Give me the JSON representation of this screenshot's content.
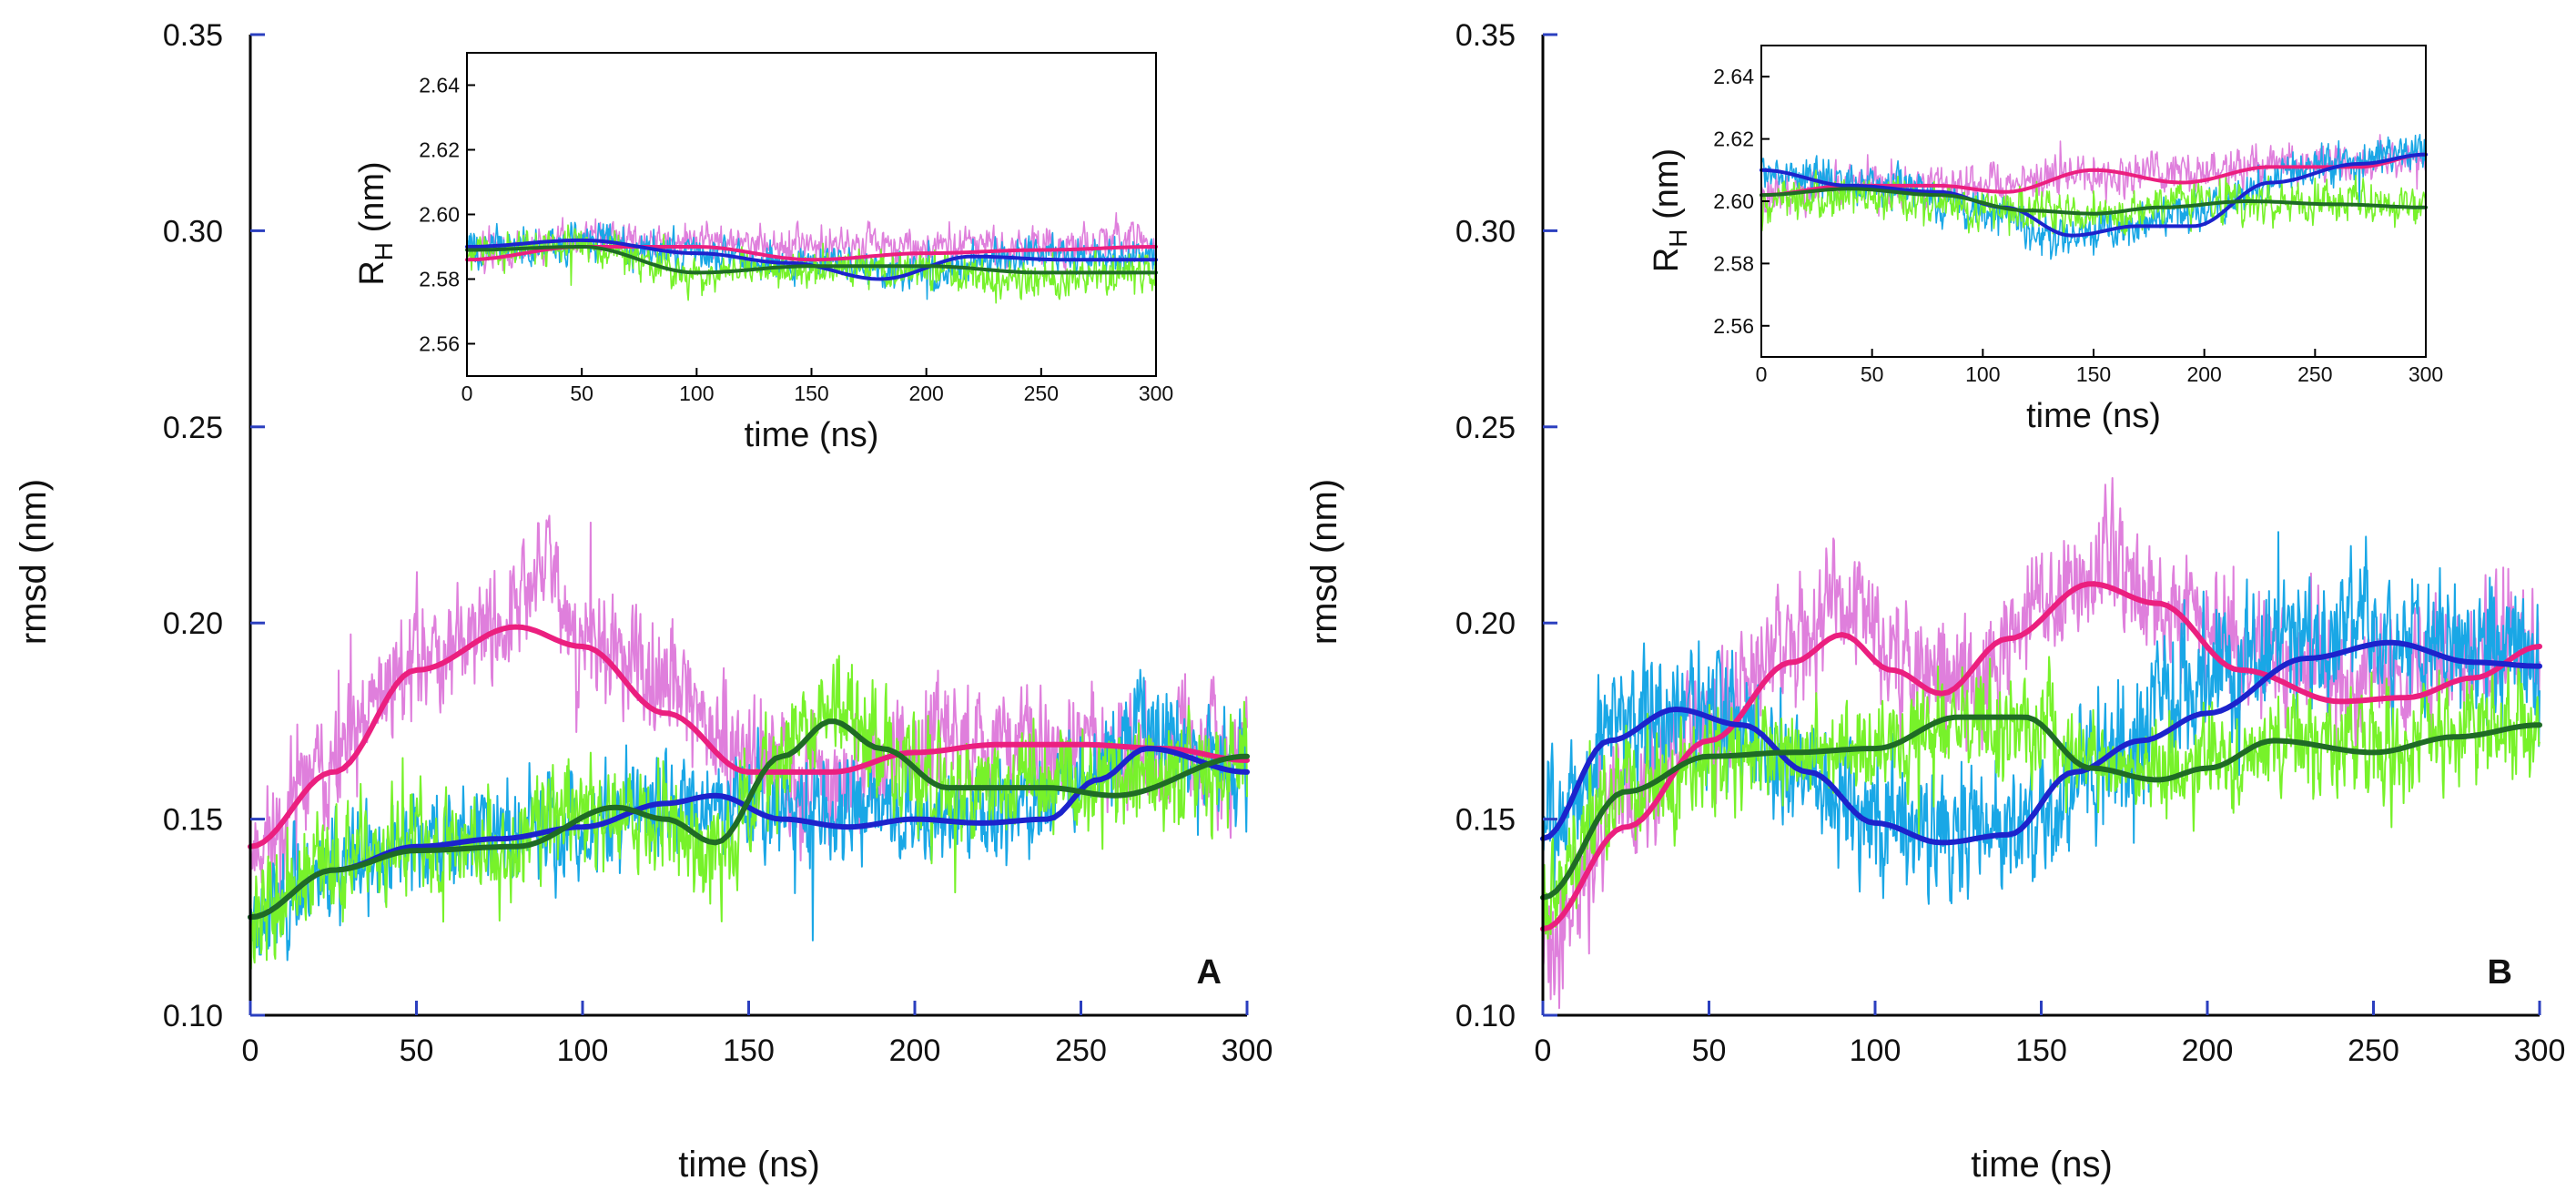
{
  "colors": {
    "noisy_pink": "#df7fdc",
    "noisy_blue": "#19a7e6",
    "noisy_green": "#77f22a",
    "smooth_pink": "#eb1f7f",
    "smooth_blue": "#1c23cc",
    "smooth_green": "#1f6b25"
  },
  "chart_data": [
    {
      "type": "line",
      "panel_label": "A",
      "xlabel": "time (ns)",
      "ylabel": "rmsd (nm)",
      "xlim": [
        0,
        300
      ],
      "ylim": [
        0.1,
        0.35
      ],
      "xticks": [
        0,
        50,
        100,
        150,
        200,
        250,
        300
      ],
      "yticks": [
        0.1,
        0.15,
        0.2,
        0.25,
        0.3,
        0.35
      ],
      "xtick_labels": [
        "0",
        "50",
        "100",
        "150",
        "200",
        "250",
        "300"
      ],
      "ytick_labels": [
        "0.10",
        "0.15",
        "0.20",
        "0.25",
        "0.30",
        "0.35"
      ],
      "series": [
        {
          "name": "pink",
          "style": "noisy",
          "color": "#df7fdc",
          "noise": 0.018,
          "seed": 11,
          "x": [
            0,
            25,
            50,
            75,
            90,
            100,
            125,
            150,
            175,
            200,
            225,
            250,
            275,
            300
          ],
          "values": [
            0.143,
            0.165,
            0.192,
            0.2,
            0.215,
            0.195,
            0.185,
            0.165,
            0.16,
            0.168,
            0.17,
            0.168,
            0.168,
            0.166
          ]
        },
        {
          "name": "blue",
          "style": "noisy",
          "color": "#19a7e6",
          "noise": 0.016,
          "seed": 23,
          "x": [
            0,
            25,
            50,
            75,
            100,
            125,
            150,
            175,
            200,
            225,
            250,
            270,
            300
          ],
          "values": [
            0.125,
            0.138,
            0.143,
            0.147,
            0.148,
            0.155,
            0.155,
            0.15,
            0.152,
            0.15,
            0.16,
            0.175,
            0.162
          ]
        },
        {
          "name": "green",
          "style": "noisy",
          "color": "#77f22a",
          "noise": 0.017,
          "seed": 37,
          "x": [
            0,
            25,
            50,
            75,
            100,
            125,
            140,
            160,
            175,
            200,
            225,
            250,
            275,
            300
          ],
          "values": [
            0.125,
            0.138,
            0.143,
            0.143,
            0.152,
            0.15,
            0.14,
            0.168,
            0.178,
            0.16,
            0.158,
            0.16,
            0.16,
            0.165
          ]
        },
        {
          "name": "pink_smooth",
          "style": "smooth",
          "color": "#eb1f7f",
          "x": [
            0,
            25,
            50,
            80,
            100,
            125,
            150,
            175,
            200,
            225,
            250,
            275,
            300
          ],
          "values": [
            0.143,
            0.162,
            0.188,
            0.199,
            0.194,
            0.177,
            0.162,
            0.162,
            0.167,
            0.169,
            0.169,
            0.168,
            0.165
          ]
        },
        {
          "name": "blue_smooth",
          "style": "smooth",
          "color": "#1c23cc",
          "x": [
            0,
            25,
            50,
            75,
            100,
            125,
            140,
            160,
            180,
            200,
            220,
            240,
            255,
            270,
            300
          ],
          "values": [
            0.125,
            0.137,
            0.143,
            0.145,
            0.148,
            0.154,
            0.156,
            0.15,
            0.148,
            0.15,
            0.149,
            0.15,
            0.16,
            0.168,
            0.162
          ]
        },
        {
          "name": "green_smooth",
          "style": "smooth",
          "color": "#1f6b25",
          "x": [
            0,
            25,
            50,
            80,
            110,
            125,
            140,
            160,
            175,
            190,
            210,
            240,
            260,
            300
          ],
          "values": [
            0.125,
            0.137,
            0.142,
            0.143,
            0.153,
            0.15,
            0.144,
            0.166,
            0.175,
            0.168,
            0.158,
            0.158,
            0.156,
            0.166
          ]
        }
      ],
      "inset": {
        "xlabel": "time (ns)",
        "ylabel": "RH (nm)",
        "ylabel_main": "R",
        "ylabel_sub": "H",
        "ylabel_unit": "(nm)",
        "xlim": [
          0,
          300
        ],
        "ylim": [
          2.55,
          2.65
        ],
        "xticks": [
          0,
          50,
          100,
          150,
          200,
          250,
          300
        ],
        "yticks": [
          2.56,
          2.58,
          2.6,
          2.62,
          2.64
        ],
        "xtick_labels": [
          "0",
          "50",
          "100",
          "150",
          "200",
          "250",
          "300"
        ],
        "ytick_labels": [
          "2.56",
          "2.58",
          "2.60",
          "2.62",
          "2.64"
        ],
        "series": [
          {
            "name": "pink",
            "style": "noisy",
            "color": "#df7fdc",
            "noise": 0.007,
            "seed": 51,
            "x": [
              0,
              50,
              100,
              150,
              200,
              250,
              300
            ],
            "values": [
              2.588,
              2.592,
              2.592,
              2.59,
              2.59,
              2.59,
              2.592
            ]
          },
          {
            "name": "blue",
            "style": "noisy",
            "color": "#19a7e6",
            "noise": 0.007,
            "seed": 63,
            "x": [
              0,
              50,
              100,
              150,
              200,
              250,
              300
            ],
            "values": [
              2.59,
              2.592,
              2.588,
              2.585,
              2.582,
              2.588,
              2.587
            ]
          },
          {
            "name": "green",
            "style": "noisy",
            "color": "#77f22a",
            "noise": 0.007,
            "seed": 77,
            "x": [
              0,
              50,
              100,
              150,
              200,
              250,
              300
            ],
            "values": [
              2.588,
              2.59,
              2.582,
              2.583,
              2.582,
              2.58,
              2.582
            ]
          },
          {
            "name": "pink_smooth",
            "style": "smooth",
            "color": "#eb1f7f",
            "x": [
              0,
              50,
              100,
              150,
              200,
              250,
              300
            ],
            "values": [
              2.586,
              2.59,
              2.59,
              2.586,
              2.588,
              2.589,
              2.59
            ]
          },
          {
            "name": "blue_smooth",
            "style": "smooth",
            "color": "#1c23cc",
            "x": [
              0,
              50,
              100,
              140,
              180,
              220,
              260,
              300
            ],
            "values": [
              2.59,
              2.592,
              2.588,
              2.585,
              2.58,
              2.587,
              2.586,
              2.586
            ]
          },
          {
            "name": "green_smooth",
            "style": "smooth",
            "color": "#1f6b25",
            "x": [
              0,
              50,
              100,
              150,
              200,
              250,
              300
            ],
            "values": [
              2.589,
              2.59,
              2.582,
              2.584,
              2.584,
              2.582,
              2.582
            ]
          }
        ]
      }
    },
    {
      "type": "line",
      "panel_label": "B",
      "xlabel": "time (ns)",
      "ylabel": "rmsd (nm)",
      "xlim": [
        0,
        300
      ],
      "ylim": [
        0.1,
        0.35
      ],
      "xticks": [
        0,
        50,
        100,
        150,
        200,
        250,
        300
      ],
      "yticks": [
        0.1,
        0.15,
        0.2,
        0.25,
        0.3,
        0.35
      ],
      "xtick_labels": [
        "0",
        "50",
        "100",
        "150",
        "200",
        "250",
        "300"
      ],
      "ytick_labels": [
        "0.10",
        "0.15",
        "0.20",
        "0.25",
        "0.30",
        "0.35"
      ],
      "series": [
        {
          "name": "pink",
          "style": "noisy",
          "color": "#df7fdc",
          "noise": 0.02,
          "seed": 91,
          "x": [
            0,
            25,
            50,
            75,
            90,
            110,
            130,
            150,
            170,
            190,
            220,
            250,
            275,
            300
          ],
          "values": [
            0.12,
            0.155,
            0.175,
            0.195,
            0.205,
            0.19,
            0.182,
            0.205,
            0.215,
            0.205,
            0.19,
            0.185,
            0.19,
            0.195
          ]
        },
        {
          "name": "blue",
          "style": "noisy",
          "color": "#19a7e6",
          "noise": 0.02,
          "seed": 103,
          "x": [
            0,
            25,
            50,
            75,
            100,
            125,
            150,
            175,
            200,
            225,
            250,
            275,
            300
          ],
          "values": [
            0.145,
            0.175,
            0.178,
            0.165,
            0.15,
            0.145,
            0.15,
            0.17,
            0.185,
            0.195,
            0.198,
            0.195,
            0.19
          ]
        },
        {
          "name": "green",
          "style": "noisy",
          "color": "#77f22a",
          "noise": 0.016,
          "seed": 117,
          "x": [
            0,
            25,
            50,
            75,
            100,
            125,
            150,
            175,
            200,
            225,
            250,
            275,
            300
          ],
          "values": [
            0.13,
            0.158,
            0.165,
            0.167,
            0.168,
            0.175,
            0.172,
            0.162,
            0.165,
            0.17,
            0.168,
            0.172,
            0.175
          ]
        },
        {
          "name": "pink_smooth",
          "style": "smooth",
          "color": "#eb1f7f",
          "x": [
            0,
            25,
            50,
            75,
            90,
            105,
            120,
            140,
            165,
            185,
            210,
            240,
            260,
            280,
            300
          ],
          "values": [
            0.122,
            0.148,
            0.17,
            0.19,
            0.197,
            0.188,
            0.182,
            0.196,
            0.21,
            0.205,
            0.188,
            0.18,
            0.181,
            0.186,
            0.194
          ]
        },
        {
          "name": "blue_smooth",
          "style": "smooth",
          "color": "#1c23cc",
          "x": [
            0,
            20,
            40,
            60,
            80,
            100,
            120,
            140,
            160,
            180,
            200,
            230,
            255,
            280,
            300
          ],
          "values": [
            0.145,
            0.17,
            0.178,
            0.174,
            0.162,
            0.149,
            0.144,
            0.146,
            0.162,
            0.17,
            0.177,
            0.191,
            0.195,
            0.19,
            0.189
          ]
        },
        {
          "name": "green_smooth",
          "style": "smooth",
          "color": "#1f6b25",
          "x": [
            0,
            25,
            50,
            75,
            100,
            125,
            145,
            165,
            185,
            200,
            220,
            250,
            275,
            300
          ],
          "values": [
            0.13,
            0.157,
            0.166,
            0.167,
            0.168,
            0.176,
            0.176,
            0.163,
            0.16,
            0.163,
            0.17,
            0.167,
            0.171,
            0.174
          ]
        }
      ],
      "inset": {
        "xlabel": "time (ns)",
        "ylabel": "RH (nm)",
        "ylabel_main": "R",
        "ylabel_sub": "H",
        "ylabel_unit": "(nm)",
        "xlim": [
          0,
          300
        ],
        "ylim": [
          2.55,
          2.65
        ],
        "xticks": [
          0,
          50,
          100,
          150,
          200,
          250,
          300
        ],
        "yticks": [
          2.56,
          2.58,
          2.6,
          2.62,
          2.64
        ],
        "xtick_labels": [
          "0",
          "50",
          "100",
          "150",
          "200",
          "250",
          "300"
        ],
        "ytick_labels": [
          "2.56",
          "2.58",
          "2.60",
          "2.62",
          "2.64"
        ],
        "series": [
          {
            "name": "pink",
            "style": "noisy",
            "color": "#df7fdc",
            "noise": 0.008,
            "seed": 131,
            "x": [
              0,
              50,
              100,
              150,
              200,
              250,
              300
            ],
            "values": [
              2.602,
              2.606,
              2.605,
              2.608,
              2.61,
              2.612,
              2.614
            ]
          },
          {
            "name": "blue",
            "style": "noisy",
            "color": "#19a7e6",
            "noise": 0.008,
            "seed": 143,
            "x": [
              0,
              50,
              100,
              130,
              160,
              200,
              250,
              300
            ],
            "values": [
              2.61,
              2.605,
              2.598,
              2.588,
              2.592,
              2.598,
              2.612,
              2.616
            ]
          },
          {
            "name": "green",
            "style": "noisy",
            "color": "#77f22a",
            "noise": 0.008,
            "seed": 157,
            "x": [
              0,
              50,
              100,
              150,
              200,
              250,
              300
            ],
            "values": [
              2.6,
              2.602,
              2.598,
              2.596,
              2.6,
              2.6,
              2.598
            ]
          },
          {
            "name": "pink_smooth",
            "style": "smooth",
            "color": "#eb1f7f",
            "x": [
              0,
              40,
              80,
              110,
              150,
              190,
              230,
              270,
              300
            ],
            "values": [
              2.602,
              2.605,
              2.605,
              2.603,
              2.61,
              2.606,
              2.611,
              2.611,
              2.615
            ]
          },
          {
            "name": "blue_smooth",
            "style": "smooth",
            "color": "#1c23cc",
            "x": [
              0,
              40,
              80,
              110,
              140,
              170,
              195,
              230,
              270,
              300
            ],
            "values": [
              2.61,
              2.605,
              2.603,
              2.598,
              2.589,
              2.592,
              2.592,
              2.606,
              2.612,
              2.615
            ]
          },
          {
            "name": "green_smooth",
            "style": "smooth",
            "color": "#1f6b25",
            "x": [
              0,
              40,
              80,
              120,
              150,
              180,
              220,
              260,
              300
            ],
            "values": [
              2.602,
              2.604,
              2.602,
              2.597,
              2.596,
              2.598,
              2.6,
              2.599,
              2.598
            ]
          }
        ]
      }
    }
  ]
}
